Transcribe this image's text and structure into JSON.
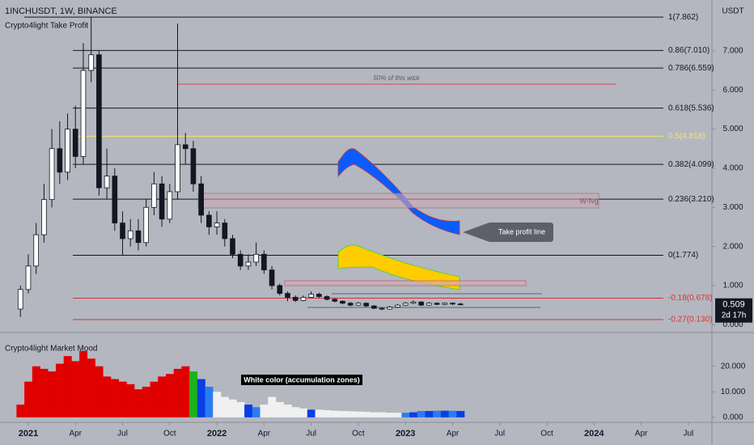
{
  "chart_data": {
    "type": "candlestick",
    "title": "1INCHUSDT, 1W, BINANCE",
    "subtitle": "Crypto4light Take Profit",
    "currency": "USDT",
    "x": [
      -0.5,
      0,
      0.5,
      1,
      1.5,
      2,
      2.5,
      3,
      3.5,
      4,
      4.5,
      5,
      5.5,
      6,
      6.5,
      7,
      7.5,
      8,
      8.5,
      9,
      9.5,
      10,
      10.5,
      11,
      11.5,
      12,
      12.5,
      13,
      13.5,
      14,
      14.5,
      15,
      15.5,
      16,
      16.5,
      17,
      17.5,
      18,
      18.5,
      19,
      19.5,
      20,
      20.5,
      21,
      21.5,
      22,
      22.5,
      23,
      23.5,
      24,
      24.5,
      25,
      25.5,
      26,
      26.5,
      27,
      27.5
    ],
    "open": [
      0.4,
      0.9,
      1.5,
      2.3,
      3.2,
      4.5,
      3.9,
      5.0,
      4.3,
      6.5,
      6.9,
      3.5,
      3.8,
      2.6,
      2.2,
      2.4,
      2.1,
      3.0,
      3.6,
      2.7,
      3.4,
      4.6,
      4.5,
      3.6,
      2.8,
      2.5,
      2.6,
      2.2,
      1.8,
      1.5,
      1.6,
      1.8,
      1.4,
      1.0,
      0.8,
      0.7,
      0.62,
      0.7,
      0.78,
      0.72,
      0.65,
      0.6,
      0.55,
      0.5,
      0.55,
      0.48,
      0.42,
      0.4,
      0.45,
      0.5,
      0.55,
      0.58,
      0.5,
      0.55,
      0.52,
      0.55,
      0.53
    ],
    "high": [
      1.0,
      1.8,
      2.6,
      3.6,
      5.0,
      5.2,
      5.4,
      5.6,
      7.2,
      7.862,
      7.0,
      4.5,
      4.0,
      2.9,
      2.7,
      2.7,
      3.2,
      3.9,
      3.8,
      3.6,
      7.7,
      4.9,
      4.7,
      3.8,
      2.9,
      2.9,
      2.7,
      2.3,
      1.9,
      1.8,
      2.1,
      1.9,
      1.5,
      1.05,
      0.85,
      0.75,
      0.75,
      0.85,
      0.82,
      0.75,
      0.68,
      0.62,
      0.58,
      0.58,
      0.57,
      0.5,
      0.45,
      0.48,
      0.53,
      0.58,
      0.62,
      0.6,
      0.58,
      0.57,
      0.57,
      0.57,
      0.56
    ],
    "low": [
      0.2,
      0.8,
      1.3,
      2.1,
      3.0,
      3.6,
      3.7,
      4.0,
      4.1,
      6.2,
      3.3,
      3.2,
      2.4,
      1.774,
      2.0,
      1.9,
      2.0,
      2.8,
      2.5,
      2.6,
      3.2,
      4.1,
      3.4,
      2.6,
      2.3,
      2.3,
      2.0,
      1.7,
      1.4,
      1.4,
      1.5,
      1.3,
      0.9,
      0.75,
      0.6,
      0.58,
      0.6,
      0.68,
      0.68,
      0.62,
      0.57,
      0.52,
      0.47,
      0.48,
      0.45,
      0.4,
      0.37,
      0.38,
      0.43,
      0.48,
      0.53,
      0.48,
      0.48,
      0.5,
      0.5,
      0.5,
      0.5
    ],
    "close": [
      0.9,
      1.5,
      2.3,
      3.2,
      4.5,
      3.9,
      5.0,
      4.3,
      6.5,
      6.9,
      3.5,
      3.8,
      2.6,
      2.2,
      2.4,
      2.1,
      3.0,
      3.6,
      2.7,
      3.4,
      4.6,
      4.5,
      3.6,
      2.8,
      2.5,
      2.6,
      2.2,
      1.8,
      1.5,
      1.6,
      1.8,
      1.4,
      1.0,
      0.8,
      0.7,
      0.62,
      0.7,
      0.78,
      0.72,
      0.65,
      0.6,
      0.55,
      0.5,
      0.55,
      0.48,
      0.42,
      0.4,
      0.45,
      0.5,
      0.55,
      0.58,
      0.5,
      0.55,
      0.52,
      0.55,
      0.53,
      0.509
    ],
    "xlim": [
      -1.8,
      43.5
    ],
    "xticks": [
      {
        "value": 0,
        "label": "2021"
      },
      {
        "value": 3,
        "label": "Apr"
      },
      {
        "value": 6,
        "label": "Jul"
      },
      {
        "value": 9,
        "label": "Oct"
      },
      {
        "value": 12,
        "label": "2022"
      },
      {
        "value": 15,
        "label": "Apr"
      },
      {
        "value": 18,
        "label": "Jul"
      },
      {
        "value": 21,
        "label": "Oct"
      },
      {
        "value": 24,
        "label": "2023"
      },
      {
        "value": 27,
        "label": "Apr"
      },
      {
        "value": 30,
        "label": "Jul"
      },
      {
        "value": 33,
        "label": "Oct"
      },
      {
        "value": 36,
        "label": "2024"
      },
      {
        "value": 39,
        "label": "Apr"
      },
      {
        "value": 42,
        "label": "Jul"
      }
    ],
    "ylim": [
      -0.2,
      8.3
    ],
    "yticks": [
      {
        "value": 0,
        "label": "0.000"
      },
      {
        "value": 1,
        "label": "1.000"
      },
      {
        "value": 2,
        "label": "2.000"
      },
      {
        "value": 3,
        "label": "3.000"
      },
      {
        "value": 4,
        "label": "4.000"
      },
      {
        "value": 5,
        "label": "5.000"
      },
      {
        "value": 6,
        "label": "6.000"
      },
      {
        "value": 7,
        "label": "7.000"
      }
    ],
    "last_price": {
      "value": 0.509,
      "label": "0.509",
      "countdown": "2d 17h"
    },
    "levels": [
      {
        "value": 7.862,
        "label": "1(7.862)",
        "color": "#131722"
      },
      {
        "value": 7.01,
        "label": "0.86(7.010)",
        "color": "#131722"
      },
      {
        "value": 6.559,
        "label": "0.786(6.559)",
        "color": "#131722"
      },
      {
        "value": 5.536,
        "label": "0.618(5.536)",
        "color": "#131722"
      },
      {
        "value": 4.818,
        "label": "0.5(4.818)",
        "color": "#f5e66a"
      },
      {
        "value": 4.099,
        "label": "0.382(4.099)",
        "color": "#131722"
      },
      {
        "value": 3.21,
        "label": "0.236(3.210)",
        "color": "#131722"
      },
      {
        "value": 1.774,
        "label": "0(1.774)",
        "color": "#131722"
      },
      {
        "value": 0.678,
        "label": "-0.18(0.678)",
        "color": "#d9323a"
      },
      {
        "value": 0.13,
        "label": "-0.27(0.130)",
        "color": "#d9323a"
      }
    ],
    "annotations": {
      "wick": "50% of this wick",
      "fvg": "W-fvg",
      "take_profit": "Take profit line",
      "accumulation": "White color (accumulation zones)"
    },
    "mood": {
      "title": "Crypto4light Market Mood",
      "ylim": [
        -1,
        31
      ],
      "yticks": [
        {
          "value": 0,
          "label": "0.000"
        },
        {
          "value": 10,
          "label": "10.000"
        },
        {
          "value": 20,
          "label": "20.000"
        }
      ],
      "values": [
        5,
        14,
        20,
        19,
        18,
        21,
        24,
        22,
        26,
        23,
        20,
        16,
        15,
        14,
        13,
        11,
        12,
        14,
        16,
        17,
        19,
        20,
        18,
        15,
        12,
        10,
        8,
        7,
        6,
        5,
        4,
        5,
        8,
        6,
        5,
        4,
        3.5,
        3,
        3,
        2.8,
        2.6,
        2.5,
        2.4,
        2.3,
        2.2,
        2,
        2,
        1.8,
        1.8,
        1.8,
        2,
        2.5,
        2.5,
        2.6,
        2.6,
        2.6,
        2.5
      ],
      "colors": [
        "#e00000",
        "#e00000",
        "#e00000",
        "#e00000",
        "#e00000",
        "#e00000",
        "#e00000",
        "#e00000",
        "#e00000",
        "#e00000",
        "#e00000",
        "#e00000",
        "#e00000",
        "#e00000",
        "#e00000",
        "#e00000",
        "#e00000",
        "#e00000",
        "#e00000",
        "#e00000",
        "#e00000",
        "#e00000",
        "#1db31d",
        "#0a3ee6",
        "#2a7cf0",
        "#f0f0f0",
        "#f0f0f0",
        "#f0f0f0",
        "#f0f0f0",
        "#0a3ee6",
        "#2a7cf0",
        "#f0f0f0",
        "#f0f0f0",
        "#f0f0f0",
        "#f0f0f0",
        "#f0f0f0",
        "#f0f0f0",
        "#0a3ee6",
        "#f0f0f0",
        "#f0f0f0",
        "#f0f0f0",
        "#f0f0f0",
        "#f0f0f0",
        "#f0f0f0",
        "#f0f0f0",
        "#f0f0f0",
        "#f0f0f0",
        "#f0f0f0",
        "#f0f0f0",
        "#2a7cf0",
        "#0a3ee6",
        "#2a7cf0",
        "#0a3ee6",
        "#2a7cf0",
        "#0a3ee6",
        "#2a7cf0",
        "#0a3ee6"
      ]
    }
  }
}
